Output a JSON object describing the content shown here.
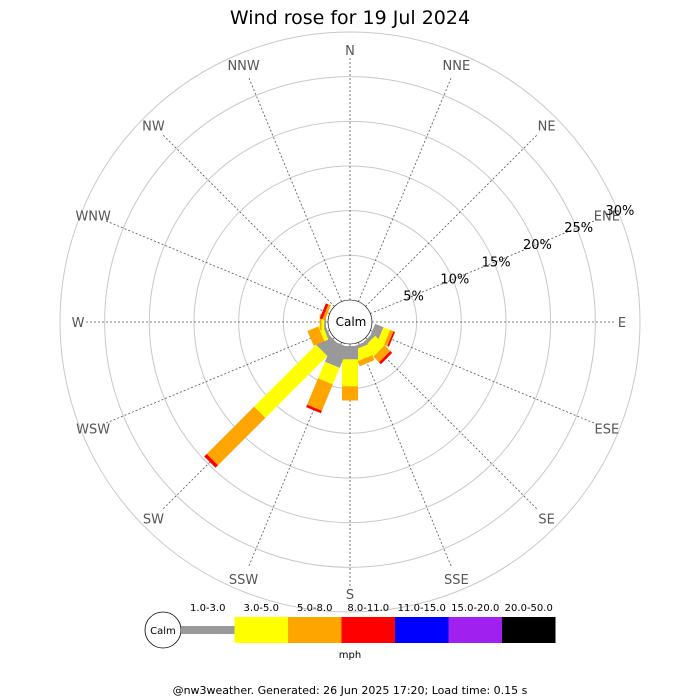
{
  "chart_data": {
    "type": "wind-rose",
    "title": "Wind rose for 19 Jul 2024",
    "directions": [
      "N",
      "NNE",
      "NE",
      "ENE",
      "E",
      "ESE",
      "SE",
      "SSE",
      "S",
      "SSW",
      "SW",
      "WSW",
      "W",
      "WNW",
      "NW",
      "NNW"
    ],
    "ring_labels": [
      "5%",
      "10%",
      "15%",
      "20%",
      "25%",
      "30%"
    ],
    "ring_values": [
      5,
      10,
      15,
      20,
      25,
      30
    ],
    "max_percent": 30,
    "calm_label": "Calm",
    "speed_bins": [
      {
        "label": "1.0-3.0",
        "color": "#999999"
      },
      {
        "label": "3.0-5.0",
        "color": "#ffff00"
      },
      {
        "label": "5.0-8.0",
        "color": "#ffa500"
      },
      {
        "label": "8.0-11.0",
        "color": "#ff0000"
      },
      {
        "label": "11.0-15.0",
        "color": "#0000ff"
      },
      {
        "label": "15.0-20.0",
        "color": "#a020f0"
      },
      {
        "label": "20.0-50.0",
        "color": "#000000"
      }
    ],
    "units": "mph",
    "sectors": [
      {
        "direction": "ESE",
        "values": [
          1.0,
          0.8,
          0.4,
          0.2,
          0,
          0,
          0
        ]
      },
      {
        "direction": "SE",
        "values": [
          0.4,
          1.5,
          0.9,
          0.3,
          0,
          0,
          0
        ]
      },
      {
        "direction": "SSE",
        "values": [
          0.4,
          1.3,
          0.6,
          0,
          0,
          0,
          0
        ]
      },
      {
        "direction": "S",
        "values": [
          1.5,
          3.0,
          1.6,
          0,
          0,
          0,
          0
        ]
      },
      {
        "direction": "SSW",
        "values": [
          2.5,
          2.0,
          3.2,
          0.3,
          0,
          0,
          0
        ]
      },
      {
        "direction": "SW",
        "values": [
          1.8,
          9.8,
          7.5,
          0.4,
          0,
          0,
          0
        ]
      },
      {
        "direction": "WSW",
        "values": [
          0.3,
          0.5,
          1.3,
          0,
          0,
          0,
          0
        ]
      },
      {
        "direction": "W",
        "values": [
          0.2,
          0.3,
          0.2,
          0,
          0,
          0,
          0
        ]
      },
      {
        "direction": "WNW",
        "values": [
          0,
          0,
          0.3,
          0.3,
          0,
          0,
          0
        ]
      }
    ]
  },
  "footer": "@nw3weather. Generated: 26 Jun 2025 17:20; Load time: 0.15 s"
}
